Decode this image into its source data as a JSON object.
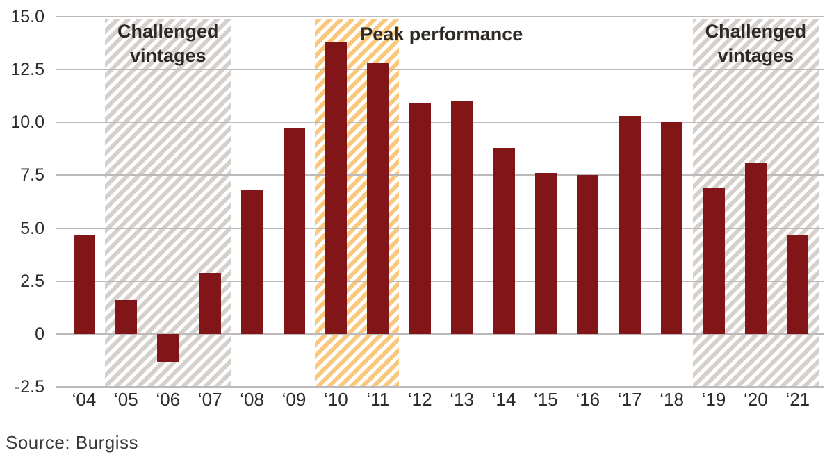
{
  "source_note": "Source: Burgiss",
  "colors": {
    "bar": "#821518",
    "grid": "#bbb9b9",
    "text": "#2f2b28",
    "hatch_gray": "#d5d0cb",
    "hatch_orange": "#f9c87d"
  },
  "chart_data": {
    "type": "bar",
    "title": "",
    "xlabel": "",
    "ylabel": "",
    "categories": [
      "‘04",
      "‘05",
      "‘06",
      "‘07",
      "‘08",
      "‘09",
      "‘10",
      "‘11",
      "‘12",
      "‘13",
      "‘14",
      "‘15",
      "‘16",
      "‘17",
      "‘18",
      "‘19",
      "‘20",
      "‘21"
    ],
    "values": [
      4.7,
      1.6,
      -1.3,
      2.9,
      6.8,
      9.7,
      13.8,
      12.8,
      10.9,
      11.0,
      8.8,
      7.6,
      7.5,
      10.3,
      10.0,
      6.9,
      8.1,
      4.7
    ],
    "ylim": [
      -2.5,
      15.0
    ],
    "ytick_labels": [
      "15.0",
      "12.5",
      "10.0",
      "7.5",
      "5.0",
      "2.5",
      "0",
      "-2.5"
    ],
    "grid": "horizontal",
    "legend": "none",
    "annotations": [
      {
        "label": "Challenged vintages",
        "label_lines": [
          "Challenged",
          "vintages"
        ],
        "categories": [
          "‘05",
          "‘07"
        ],
        "style": "gray-hatch"
      },
      {
        "label": "Peak performance",
        "label_lines": [
          "Peak performance"
        ],
        "categories": [
          "‘10",
          "‘11"
        ],
        "style": "orange-hatch"
      },
      {
        "label": "Challenged vintages",
        "label_lines": [
          "Challenged",
          "vintages"
        ],
        "categories": [
          "‘19",
          "‘21"
        ],
        "style": "gray-hatch"
      }
    ],
    "source": "Source: Burgiss"
  }
}
